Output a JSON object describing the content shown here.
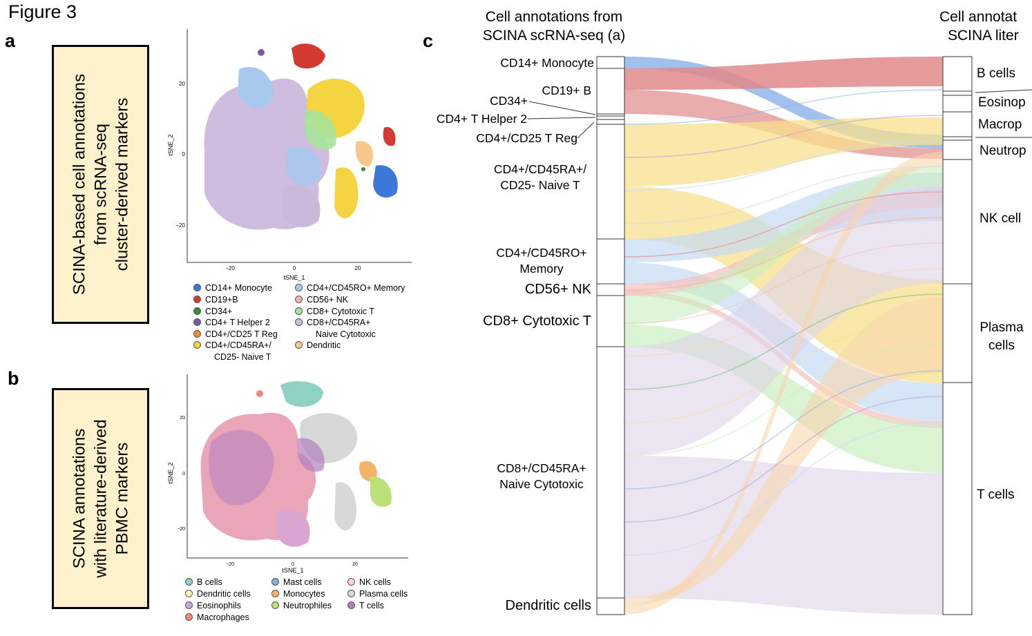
{
  "figure_title": "Figure 3",
  "panels": {
    "a": {
      "letter": "a",
      "box_lines": [
        "SCINA-based cell annotations",
        "from scRNA-seq",
        "cluster-derived markers"
      ],
      "plot": {
        "ylabel": "tSNE_2",
        "xlabel": "tSNE_1",
        "xticks": [
          "−20",
          "0",
          "20"
        ],
        "yticks": [
          "20",
          "0",
          "−20"
        ]
      },
      "legend": [
        {
          "label": "CD14+ Monocyte",
          "color": "#3b78d8"
        },
        {
          "label": "CD19+B",
          "color": "#d33a32"
        },
        {
          "label": "CD34+",
          "color": "#3a8a3a"
        },
        {
          "label": "CD4+ T Helper 2",
          "color": "#7b58a8"
        },
        {
          "label": "CD4+/CD25 T Reg",
          "color": "#f08a3c"
        },
        {
          "label": "CD4+/CD45RA+/",
          "sub": "CD25- Naive T",
          "color": "#f5d442"
        },
        {
          "label": "CD4+/CD45RO+ Memory",
          "color": "#a8c8ee"
        },
        {
          "label": "CD56+ NK",
          "color": "#f4b2ae"
        },
        {
          "label": "CD8+ Cytotoxic T",
          "color": "#a6e39b"
        },
        {
          "label": "CD8+/CD45RA+",
          "sub": "Naive Cytotoxic",
          "color": "#cfc0e2"
        },
        {
          "label": "Dendritic",
          "color": "#f6c98a"
        }
      ]
    },
    "b": {
      "letter": "b",
      "box_lines": [
        "SCINA annotations",
        "with literature-derived",
        "PBMC markers"
      ],
      "plot": {
        "ylabel": "tSNE_2",
        "xlabel": "tSNE_1",
        "xticks": [
          "−20",
          "0",
          "20"
        ],
        "yticks": [
          "20",
          "0",
          "−20"
        ]
      },
      "legend": [
        {
          "label": "B cells",
          "color": "#8fd1c4"
        },
        {
          "label": "Dendritic cells",
          "color": "#fbf6b5"
        },
        {
          "label": "Eosinophils",
          "color": "#b9aed6"
        },
        {
          "label": "Macrophages",
          "color": "#ef8a7a"
        },
        {
          "label": "Mast cells",
          "color": "#86aed8"
        },
        {
          "label": "Monocytes",
          "color": "#f5b36a"
        },
        {
          "label": "Neutrophiles",
          "color": "#bde07a"
        },
        {
          "label": "NK cells",
          "color": "#f6cfe2"
        },
        {
          "label": "Plasma cells",
          "color": "#d8d8d8"
        },
        {
          "label": "T cells",
          "color": "#b27fbf"
        }
      ]
    },
    "c": {
      "letter": "c",
      "left_header": [
        "Cell annotations from",
        "SCINA scRNA-seq (a)"
      ],
      "right_header": [
        "Cell annotat",
        "SCINA liter"
      ],
      "left_nodes": [
        {
          "label": "CD14+ Monocyte",
          "color": "#8fb5ea"
        },
        {
          "label": "CD19+ B",
          "color": "#e08a8a"
        },
        {
          "label": "CD34+",
          "color": "#7fbf7f"
        },
        {
          "label": "CD4+ T Helper 2",
          "color": "#b7a2d6"
        },
        {
          "label": "CD4+/CD25 T Reg",
          "color": "#f6b78a"
        },
        {
          "label": "CD4+/CD45RA+/",
          "sub": "CD25- Naive T",
          "color": "#f7e08e"
        },
        {
          "label": "CD4+/CD45RO+",
          "sub": "Memory",
          "color": "#c6dcf3"
        },
        {
          "label": "CD56+ NK",
          "color": "#f3c2c0"
        },
        {
          "label": "CD8+ Cytotoxic T",
          "color": "#c9eec0"
        },
        {
          "label": "CD8+/CD45RA+",
          "sub": "Naive Cytotoxic",
          "color": "#ddd3ea"
        },
        {
          "label": "Dendritic cells",
          "color": "#f8d6ad"
        }
      ],
      "right_nodes": [
        {
          "label": "B cells"
        },
        {
          "label": "Eosinop"
        },
        {
          "label": "Macrop"
        },
        {
          "label": "Neutrop"
        },
        {
          "label": "NK cell"
        },
        {
          "label": "Plasma",
          "sub": "cells"
        },
        {
          "label": "T cells"
        }
      ]
    }
  }
}
